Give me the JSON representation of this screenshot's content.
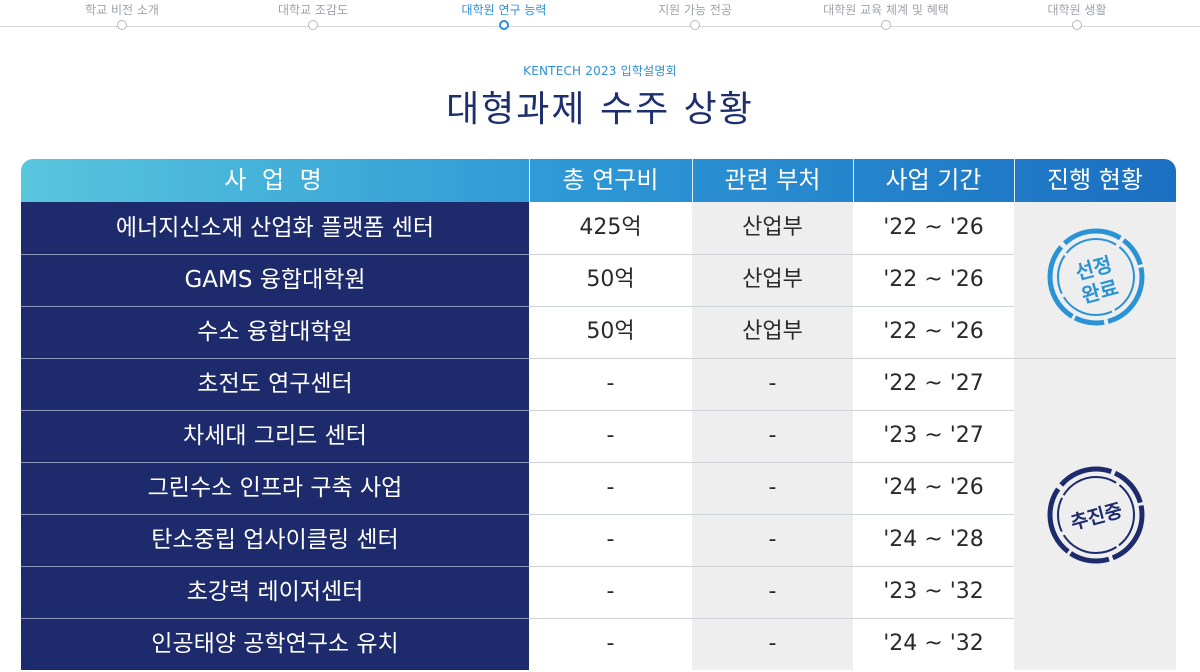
{
  "nav": {
    "items": [
      {
        "label": "학교 비전 소개",
        "active": false
      },
      {
        "label": "대학교 조감도",
        "active": false
      },
      {
        "label": "대학원 연구 능력",
        "active": true
      },
      {
        "label": "지원 가능 전공",
        "active": false
      },
      {
        "label": "대학원 교육 체계 및 혜택",
        "active": false
      },
      {
        "label": "대학원 생활",
        "active": false
      }
    ]
  },
  "header": {
    "subtitle": "KENTECH 2023 입학설명회",
    "title": "대형과제 수주 상황"
  },
  "table": {
    "columns": [
      "사 업 명",
      "총 연구비",
      "관련 부처",
      "사업 기간",
      "진행 현황"
    ],
    "rows": [
      {
        "name": "에너지신소재 산업화 플랫폼 센터",
        "cost": "425억",
        "dept": "산업부",
        "period": "'22 ~ '26"
      },
      {
        "name": "GAMS 융합대학원",
        "cost": "50억",
        "dept": "산업부",
        "period": "'22 ~ '26"
      },
      {
        "name": "수소 융합대학원",
        "cost": "50억",
        "dept": "산업부",
        "period": "'22 ~ '26"
      },
      {
        "name": "초전도 연구센터",
        "cost": "-",
        "dept": "-",
        "period": "'22 ~ '27"
      },
      {
        "name": "차세대 그리드 센터",
        "cost": "-",
        "dept": "-",
        "period": "'23 ~ '27"
      },
      {
        "name": "그린수소 인프라 구축 사업",
        "cost": "-",
        "dept": "-",
        "period": "'24 ~ '26"
      },
      {
        "name": "탄소중립 업사이클링 센터",
        "cost": "-",
        "dept": "-",
        "period": "'24 ~ '28"
      },
      {
        "name": "초강력 레이저센터",
        "cost": "-",
        "dept": "-",
        "period": "'23 ~ '32"
      },
      {
        "name": "인공태양 공학연구소 유치",
        "cost": "-",
        "dept": "-",
        "period": "'24 ~ '32"
      }
    ],
    "stamps": [
      {
        "label_line1": "선정",
        "label_line2": "완료",
        "color": "#2a93d6"
      },
      {
        "label_line1": "추진중",
        "label_line2": "",
        "color": "#1d2a6b"
      }
    ]
  },
  "colors": {
    "navy": "#1d2a6b",
    "accent": "#2d8fd5",
    "header_gradient_start": "#58c6dd",
    "header_gradient_end": "#1b6fc2"
  }
}
